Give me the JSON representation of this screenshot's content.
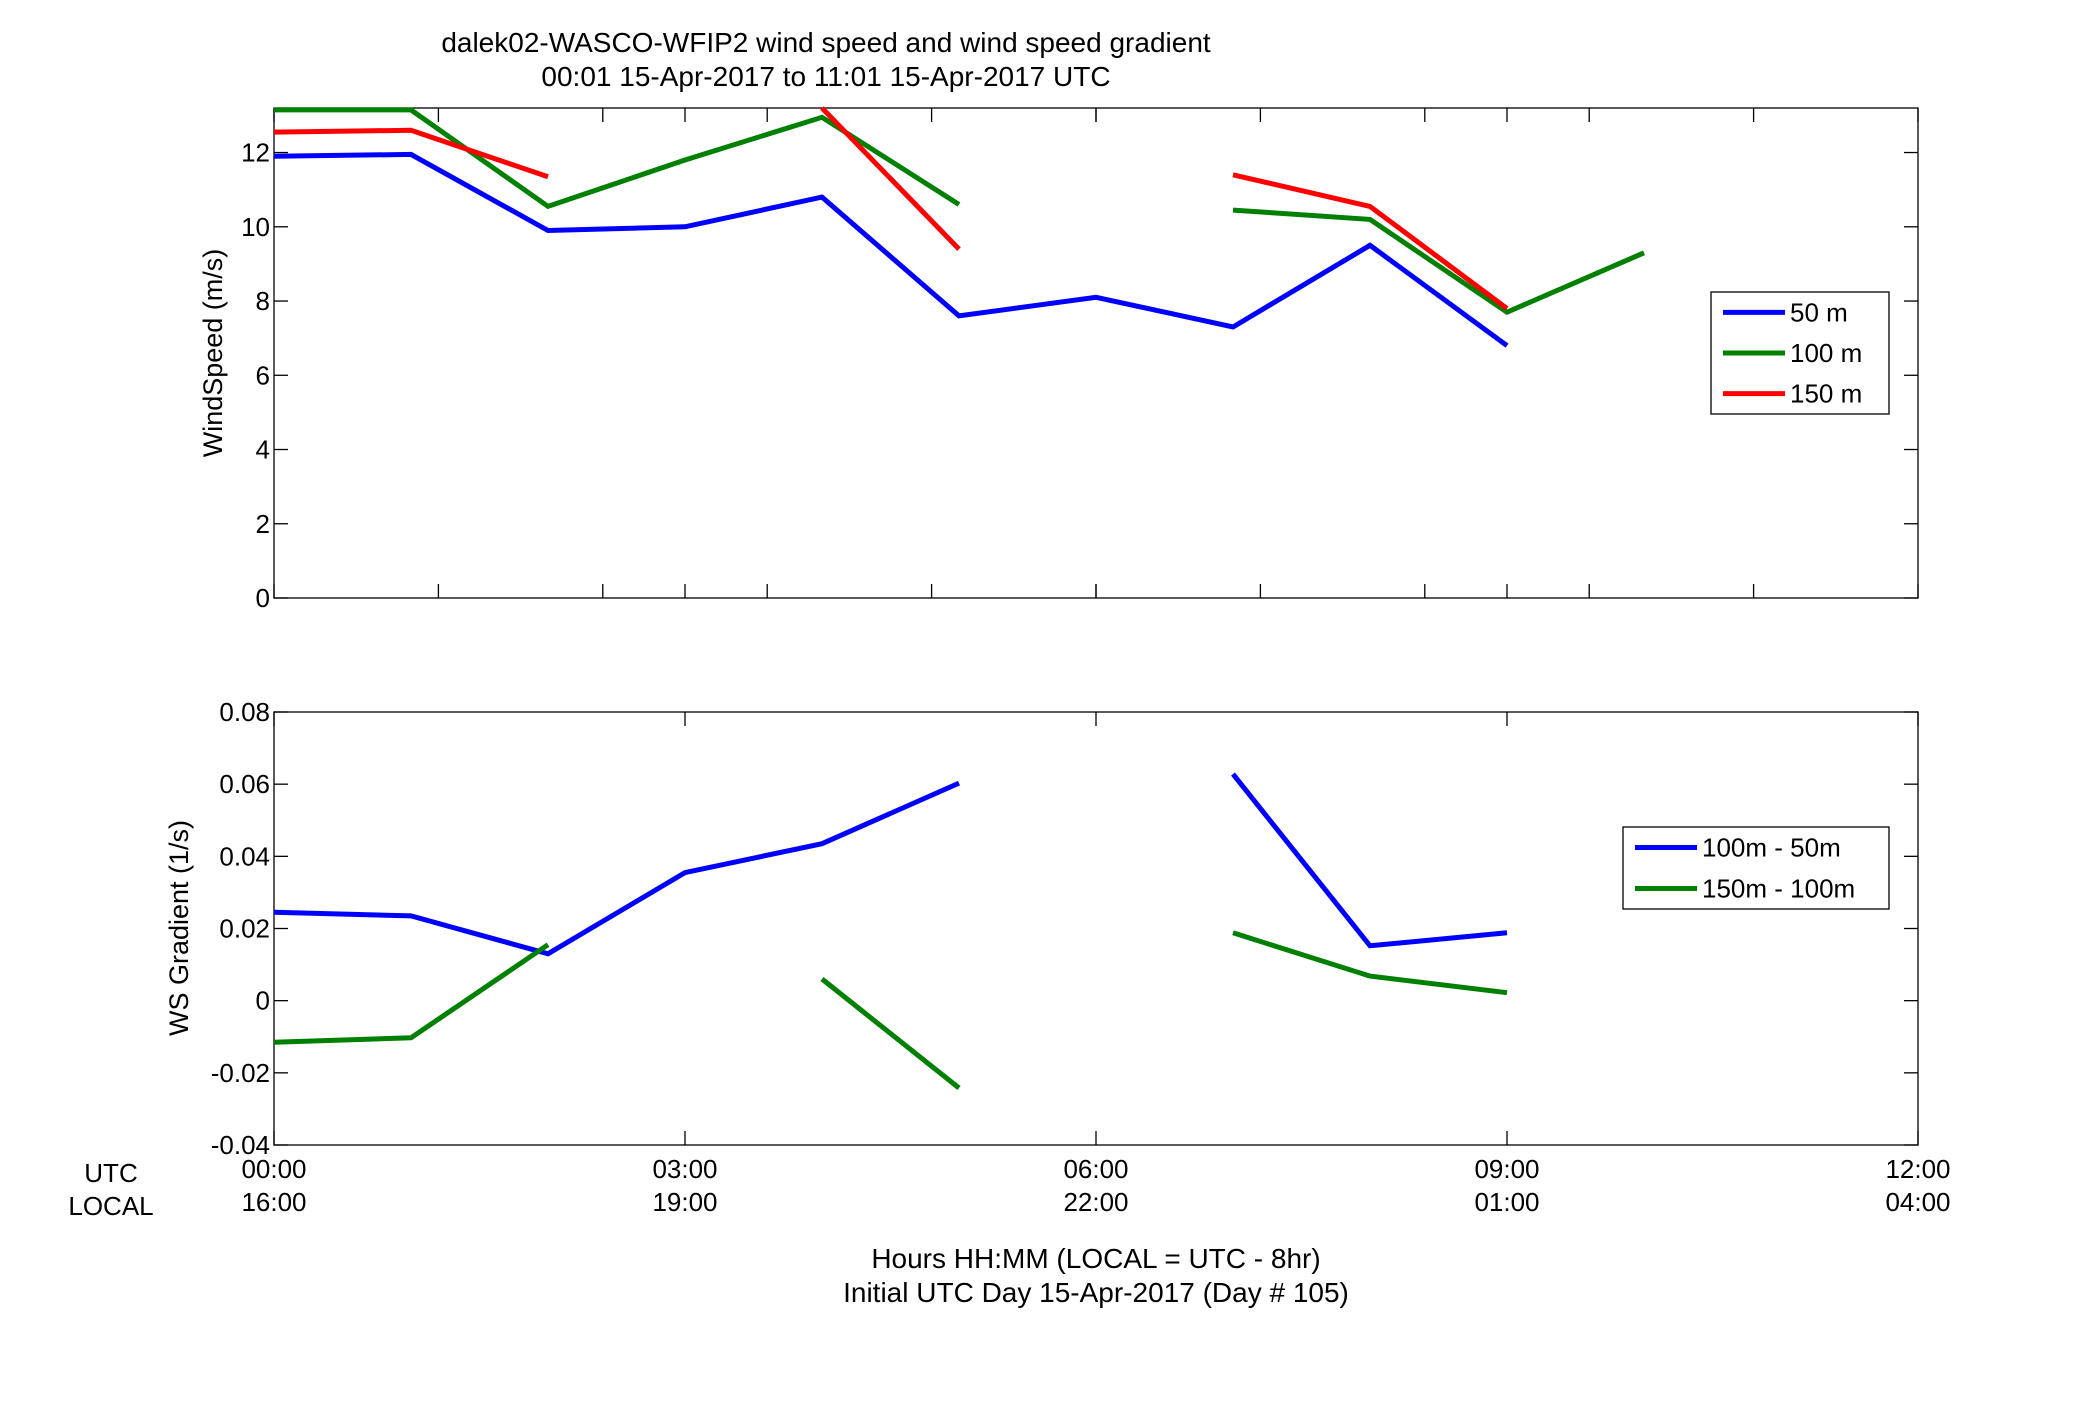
{
  "figure": {
    "title_line1": "dalek02-WASCO-WFIP2  wind speed and wind speed gradient",
    "title_line2": "00:01 15-Apr-2017 to 11:01 15-Apr-2017  UTC",
    "row_labels": {
      "utc": "UTC",
      "local": "LOCAL"
    },
    "xlabel_line1": "Hours HH:MM  (LOCAL = UTC - 8hr)",
    "xlabel_line2": "Initial UTC Day 15-Apr-2017 (Day # 105)",
    "x_ticks": [
      {
        "hours": 0,
        "utc": "00:00",
        "local": "16:00"
      },
      {
        "hours": 3,
        "utc": "03:00",
        "local": "19:00"
      },
      {
        "hours": 6,
        "utc": "06:00",
        "local": "22:00"
      },
      {
        "hours": 9,
        "utc": "09:00",
        "local": "01:00"
      },
      {
        "hours": 12,
        "utc": "12:00",
        "local": "04:00"
      }
    ]
  },
  "chart_data": [
    {
      "type": "line",
      "ylabel": "WindSpeed (m/s)",
      "xlim": [
        0,
        12
      ],
      "ylim": [
        0,
        13.2
      ],
      "x_minor_ticks": [
        1.2,
        2.4,
        3.6,
        4.8,
        6.0,
        7.2,
        8.4,
        9.6,
        10.8
      ],
      "yticks": [
        0,
        2,
        4,
        6,
        8,
        10,
        12
      ],
      "ytick_labels": [
        "0",
        "2",
        "4",
        "6",
        "8",
        "10",
        "12"
      ],
      "grid": false,
      "legend_position": "right",
      "series": [
        {
          "name": "50 m",
          "color": "#0000ff",
          "points": [
            [
              0.0,
              11.9
            ],
            [
              1.0,
              11.95
            ],
            [
              2.0,
              9.9
            ],
            [
              3.0,
              10.0
            ],
            [
              4.0,
              10.8
            ],
            [
              5.0,
              7.6
            ],
            [
              6.0,
              8.1
            ],
            [
              7.0,
              7.3
            ],
            [
              8.0,
              9.5
            ],
            [
              9.0,
              6.8
            ]
          ]
        },
        {
          "name": "100 m",
          "color": "#008000",
          "points": [
            [
              0.0,
              13.15
            ],
            [
              1.0,
              13.15
            ],
            [
              2.0,
              10.55
            ],
            [
              3.0,
              11.8
            ],
            [
              4.0,
              12.95
            ],
            [
              5.0,
              10.6
            ],
            null,
            [
              7.0,
              10.45
            ],
            [
              8.0,
              10.2
            ],
            [
              9.0,
              7.7
            ],
            [
              10.0,
              9.3
            ]
          ]
        },
        {
          "name": "150 m",
          "color": "#ff0000",
          "points": [
            [
              0.0,
              12.55
            ],
            [
              1.0,
              12.6
            ],
            [
              2.0,
              11.35
            ],
            null,
            [
              4.0,
              13.2
            ],
            [
              5.0,
              9.4
            ],
            null,
            [
              7.0,
              11.4
            ],
            [
              8.0,
              10.55
            ],
            [
              9.0,
              7.8
            ]
          ]
        }
      ]
    },
    {
      "type": "line",
      "ylabel": "WS Gradient (1/s)",
      "xlim": [
        0,
        12
      ],
      "ylim": [
        -0.04,
        0.08
      ],
      "x_minor_ticks": [],
      "yticks": [
        -0.04,
        -0.02,
        0,
        0.02,
        0.04,
        0.06,
        0.08
      ],
      "ytick_labels": [
        "-0.04",
        "-0.02",
        "0",
        "0.02",
        "0.04",
        "0.06",
        "0.08"
      ],
      "grid": false,
      "legend_position": "right",
      "series": [
        {
          "name": "100m - 50m",
          "color": "#0000ff",
          "points": [
            [
              0.0,
              0.0245
            ],
            [
              1.0,
              0.0235
            ],
            [
              2.0,
              0.013
            ],
            [
              3.0,
              0.0355
            ],
            [
              4.0,
              0.0435
            ],
            [
              5.0,
              0.0603
            ],
            null,
            [
              7.0,
              0.0628
            ],
            [
              8.0,
              0.0152
            ],
            [
              9.0,
              0.0188
            ]
          ]
        },
        {
          "name": "150m - 100m",
          "color": "#008000",
          "points": [
            [
              0.0,
              -0.0115
            ],
            [
              1.0,
              -0.0103
            ],
            [
              2.0,
              0.0155
            ],
            null,
            [
              4.0,
              0.006
            ],
            [
              5.0,
              -0.0242
            ],
            null,
            [
              7.0,
              0.0188
            ],
            [
              8.0,
              0.0068
            ],
            [
              9.0,
              0.0022
            ]
          ]
        }
      ]
    }
  ]
}
